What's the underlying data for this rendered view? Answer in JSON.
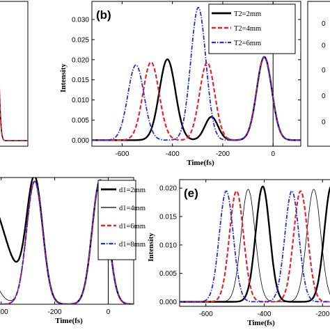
{
  "chart_data": [
    {
      "id": "a",
      "type": "line",
      "panel_label": "",
      "xlabel": "",
      "ylabel": "",
      "xlim": [
        0,
        1
      ],
      "ylim": [
        0,
        1
      ],
      "x_ticks": [],
      "y_ticks": [],
      "peaks": [
        {
          "series": 0,
          "pulses": [
            [
              0.0,
              0.9,
              0.1
            ]
          ]
        }
      ],
      "series": [
        {
          "name": "",
          "color": "#000000",
          "dash": "solid",
          "width": 1.6
        },
        {
          "name": "",
          "color": "#e3262b",
          "dash": "6,3",
          "width": 1.8
        }
      ]
    },
    {
      "id": "b",
      "type": "line",
      "panel_label": "(b)",
      "xlabel": "Time(fs)",
      "ylabel": "Intensity",
      "xlim": [
        -720,
        110
      ],
      "ylim": [
        -0.0015,
        0.0345
      ],
      "x_ticks": [
        {
          "v": -600,
          "label": "-600"
        },
        {
          "v": -400,
          "label": "-400"
        },
        {
          "v": -200,
          "label": "-200"
        },
        {
          "v": 0,
          "label": "0"
        }
      ],
      "y_ticks": [
        {
          "v": 0.0,
          "label": "0.000"
        },
        {
          "v": 0.005,
          "label": "0.005"
        },
        {
          "v": 0.01,
          "label": "0.010"
        },
        {
          "v": 0.015,
          "label": "0.015"
        },
        {
          "v": 0.02,
          "label": "0.020"
        },
        {
          "v": 0.025,
          "label": "0.025"
        },
        {
          "v": 0.03,
          "label": "0.030"
        }
      ],
      "vline": 0,
      "legend": {
        "position": "top-right"
      },
      "series": [
        {
          "name": "T2=2mm",
          "color": "#000000",
          "dash": "solid",
          "width": 2.4,
          "pulses": [
            [
              -420,
              0.0201,
              32
            ],
            [
              -245,
              0.0058,
              26
            ],
            [
              -35,
              0.0207,
              30
            ]
          ]
        },
        {
          "name": "T2=4mm",
          "color": "#e3262b",
          "dash": "6,3",
          "width": 2.2,
          "pulses": [
            [
              -485,
              0.0194,
              32
            ],
            [
              -262,
              0.0193,
              30
            ],
            [
              -35,
              0.0207,
              30
            ]
          ]
        },
        {
          "name": "T2=6mm",
          "color": "#2a2ad6",
          "dash": "6,2,1.5,2",
          "width": 1.8,
          "pulses": [
            [
              -545,
              0.0187,
              32
            ],
            [
              -297,
              0.033,
              30
            ],
            [
              -35,
              0.0207,
              30
            ]
          ]
        }
      ]
    },
    {
      "id": "c",
      "type": "line",
      "panel_label": "",
      "xlabel": "",
      "ylabel": "",
      "xlim": [
        0,
        1
      ],
      "ylim": [
        0,
        1
      ],
      "x_ticks": [],
      "y_ticks": [
        {
          "v": 0.17,
          "label": "0"
        },
        {
          "v": 0.35,
          "label": "0"
        },
        {
          "v": 0.53,
          "label": "0"
        },
        {
          "v": 0.7,
          "label": "0"
        },
        {
          "v": 0.85,
          "label": "0"
        }
      ],
      "series": []
    },
    {
      "id": "d",
      "type": "line",
      "panel_label": "",
      "xlabel": "Time(fs)",
      "ylabel": "",
      "xlim": [
        -420,
        95
      ],
      "ylim": [
        0,
        1.0
      ],
      "x_ticks": [
        {
          "v": -400,
          "label": "-400"
        },
        {
          "v": -200,
          "label": "-200"
        },
        {
          "v": 0,
          "label": "0"
        }
      ],
      "y_ticks": [],
      "vline": 0,
      "legend": {
        "position": "right"
      },
      "series": [
        {
          "name": "d1=2mm",
          "color": "#000000",
          "dash": "solid",
          "width": 2.4,
          "base": 0.88,
          "baseCenter": -460,
          "baseWidth": 75,
          "pulses": [
            [
              -275,
              0.97,
              30
            ],
            [
              -30,
              0.98,
              30
            ]
          ]
        },
        {
          "name": "d1=4mm",
          "color": "#000000",
          "dash": "solid",
          "width": 0.8,
          "base": 0.95,
          "baseCenter": -520,
          "baseWidth": 55,
          "pulses": [
            [
              -275,
              0.97,
              30
            ],
            [
              -30,
              0.98,
              30
            ]
          ]
        },
        {
          "name": "d1=6mm",
          "color": "#e3262b",
          "dash": "6,3",
          "width": 2.2,
          "base": 0.0,
          "baseCenter": -460,
          "baseWidth": 40,
          "pulses": [
            [
              -275,
              0.97,
              30
            ],
            [
              -30,
              0.98,
              30
            ]
          ]
        },
        {
          "name": "d1=8mm",
          "color": "#2a2ad6",
          "dash": "6,2,1.5,2",
          "width": 1.8,
          "base": 0.0,
          "baseCenter": -460,
          "baseWidth": 40,
          "pulses": [
            [
              -275,
              0.97,
              30
            ],
            [
              -30,
              0.98,
              30
            ]
          ]
        }
      ]
    },
    {
      "id": "e",
      "type": "line",
      "panel_label": "(e)",
      "xlabel": "Time(fs)",
      "ylabel": "Intensity",
      "xlim": [
        -690,
        -160
      ],
      "ylim": [
        -0.0008,
        0.0215
      ],
      "x_ticks": [
        {
          "v": -600,
          "label": "-600"
        },
        {
          "v": -400,
          "label": "-400"
        },
        {
          "v": -200,
          "label": "-200"
        }
      ],
      "y_ticks": [
        {
          "v": 0.0,
          "label": "0.000"
        },
        {
          "v": 0.005,
          "label": "0.005"
        },
        {
          "v": 0.01,
          "label": "0.010"
        },
        {
          "v": 0.015,
          "label": "0.015"
        },
        {
          "v": 0.02,
          "label": "0.020"
        }
      ],
      "series": [
        {
          "name": "",
          "color": "#000000",
          "dash": "solid",
          "width": 2.4,
          "pulses": [
            [
              -405,
              0.0203,
              24
            ],
            [
              -170,
              0.0203,
              24
            ]
          ]
        },
        {
          "name": "",
          "color": "#000000",
          "dash": "solid",
          "width": 0.8,
          "pulses": [
            [
              -455,
              0.0198,
              24
            ],
            [
              -230,
              0.0198,
              24
            ]
          ]
        },
        {
          "name": "",
          "color": "#e3262b",
          "dash": "6,3",
          "width": 2.2,
          "pulses": [
            [
              -495,
              0.0195,
              24
            ],
            [
              -275,
              0.0195,
              24
            ]
          ]
        },
        {
          "name": "",
          "color": "#2a2ad6",
          "dash": "6,2,1.5,2",
          "width": 1.8,
          "pulses": [
            [
              -530,
              0.0195,
              24
            ],
            [
              -305,
              0.0195,
              24
            ]
          ]
        }
      ]
    }
  ]
}
